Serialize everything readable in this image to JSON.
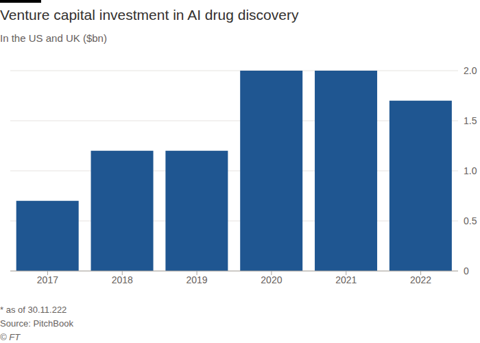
{
  "chart_data": {
    "type": "bar",
    "title": "Venture capital investment in AI drug discovery",
    "subtitle": "In the US and UK ($bn)",
    "categories": [
      "2017",
      "2018",
      "2019",
      "2020",
      "2021",
      "2022"
    ],
    "values": [
      0.7,
      1.2,
      1.2,
      2.0,
      2.0,
      1.7
    ],
    "color": "#1f5691",
    "ylim": [
      0,
      2
    ],
    "yticks": [
      0,
      0.5,
      {
        "value": 1,
        "label": "1.0"
      },
      1.5,
      {
        "value": 2,
        "label": "2.0"
      }
    ],
    "grid": true,
    "annotations": [
      "* as of 30.11.222",
      "Source: PitchBook",
      "© FT"
    ]
  }
}
